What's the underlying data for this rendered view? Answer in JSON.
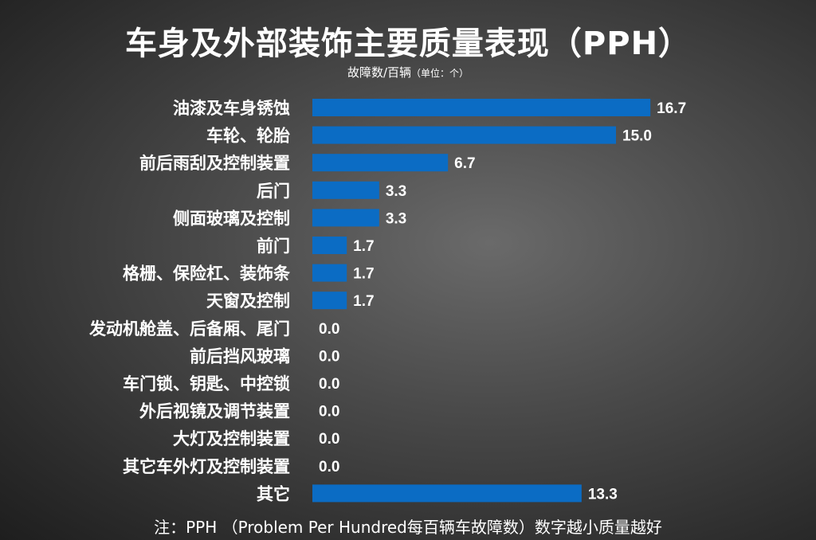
{
  "title": "车身及外部装饰主要质量表现（PPH）",
  "subtitle_main": "故障数/百辆",
  "subtitle_unit": "（单位：个）",
  "footnote": "注：PPH （Problem Per Hundred每百辆车故障数）数字越小质量越好",
  "colors": {
    "bar": "#0b6cc4",
    "text": "#ffffff"
  },
  "chart_data": {
    "type": "bar",
    "orientation": "horizontal",
    "title": "车身及外部装饰主要质量表现（PPH）",
    "subtitle": "故障数/百辆（单位：个）",
    "categories": [
      "油漆及车身锈蚀",
      "车轮、轮胎",
      "前后雨刮及控制装置",
      "后门",
      "侧面玻璃及控制",
      "前门",
      "格栅、保险杠、装饰条",
      "天窗及控制",
      "发动机舱盖、后备厢、尾门",
      "前后挡风玻璃",
      "车门锁、钥匙、中控锁",
      "外后视镜及调节装置",
      "大灯及控制装置",
      "其它车外灯及控制装置",
      "其它"
    ],
    "values": [
      16.7,
      15.0,
      6.7,
      3.3,
      3.3,
      1.7,
      1.7,
      1.7,
      0.0,
      0.0,
      0.0,
      0.0,
      0.0,
      0.0,
      13.3
    ],
    "value_labels": [
      "16.7",
      "15.0",
      "6.7",
      "3.3",
      "3.3",
      "1.7",
      "1.7",
      "1.7",
      "0.0",
      "0.0",
      "0.0",
      "0.0",
      "0.0",
      "0.0",
      "13.3"
    ],
    "xlim": [
      0,
      20
    ],
    "grid": false,
    "legend": "none"
  }
}
